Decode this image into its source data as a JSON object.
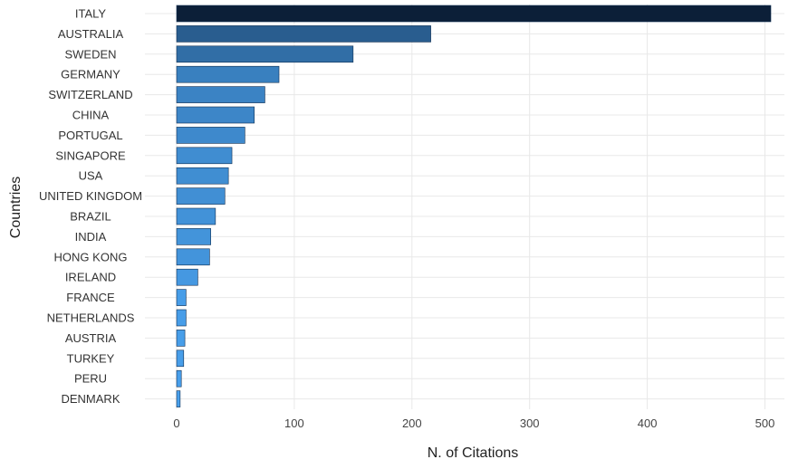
{
  "chart_data": {
    "type": "bar",
    "orientation": "horizontal",
    "title": "",
    "xlabel": "N. of Citations",
    "ylabel": "Countries",
    "xlim": [
      0,
      505
    ],
    "xticks": [
      0,
      100,
      200,
      300,
      400,
      500
    ],
    "grid": true,
    "categories": [
      "ITALY",
      "AUSTRALIA",
      "SWEDEN",
      "GERMANY",
      "SWITZERLAND",
      "CHINA",
      "PORTUGAL",
      "SINGAPORE",
      "USA",
      "UNITED KINGDOM",
      "BRAZIL",
      "INDIA",
      "HONG KONG",
      "IRELAND",
      "FRANCE",
      "NETHERLANDS",
      "AUSTRIA",
      "TURKEY",
      "PERU",
      "DENMARK"
    ],
    "values": [
      505,
      216,
      150,
      87,
      75,
      66,
      58,
      47,
      44,
      41,
      33,
      29,
      28,
      18,
      8,
      8,
      7,
      6,
      4,
      3
    ],
    "color_scale": {
      "low": "#4aa3f0",
      "high": "#0c1f38"
    }
  }
}
